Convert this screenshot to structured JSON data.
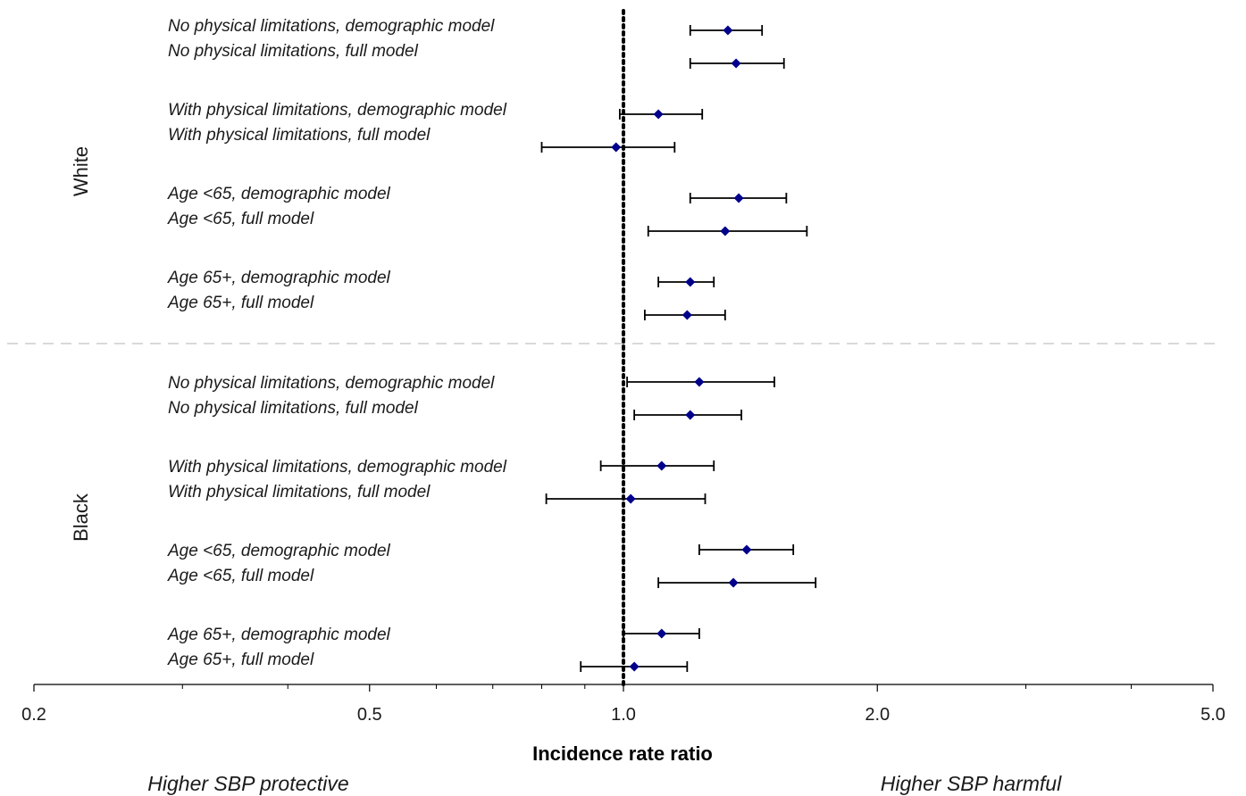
{
  "chart_data": {
    "type": "scatter",
    "subtype": "forest-plot",
    "title": "",
    "xlabel": "Incidence rate ratio",
    "ylabel": "",
    "x_scale": "log",
    "xlim": [
      0.2,
      5.0
    ],
    "x_ticks": [
      {
        "value": 0.2,
        "label": "0.2"
      },
      {
        "value": 0.5,
        "label": "0.5"
      },
      {
        "value": 1.0,
        "label": "1.0"
      },
      {
        "value": 2.0,
        "label": "2.0"
      },
      {
        "value": 5.0,
        "label": "5.0"
      }
    ],
    "x_minor_ticks": [
      0.3,
      0.4,
      0.6,
      0.7,
      0.8,
      0.9,
      3.0,
      4.0
    ],
    "reference_line": 1.0,
    "annotations": {
      "left": "Higher SBP protective",
      "right": "Higher SBP harmful"
    },
    "colors": {
      "marker": "#00008B",
      "whisker": "#000000",
      "reference_line": "#000000",
      "separator": "#d9d9d9"
    },
    "groups": [
      {
        "name": "White",
        "rows": [
          {
            "label": "No physical limitations, demographic model",
            "estimate": 1.33,
            "lower": 1.2,
            "upper": 1.46
          },
          {
            "label": "No physical limitations, full model",
            "estimate": 1.36,
            "lower": 1.2,
            "upper": 1.55
          },
          {
            "label": "With physical limitations, demographic model",
            "estimate": 1.1,
            "lower": 0.99,
            "upper": 1.24
          },
          {
            "label": "With physical limitations, full model",
            "estimate": 0.98,
            "lower": 0.8,
            "upper": 1.15
          },
          {
            "label": "Age <65, demographic model",
            "estimate": 1.37,
            "lower": 1.2,
            "upper": 1.56
          },
          {
            "label": "Age <65, full model",
            "estimate": 1.32,
            "lower": 1.07,
            "upper": 1.65
          },
          {
            "label": "Age 65+, demographic model",
            "estimate": 1.2,
            "lower": 1.1,
            "upper": 1.28
          },
          {
            "label": "Age 65+, full model",
            "estimate": 1.19,
            "lower": 1.06,
            "upper": 1.32
          }
        ]
      },
      {
        "name": "Black",
        "rows": [
          {
            "label": "No physical limitations, demographic model",
            "estimate": 1.23,
            "lower": 1.01,
            "upper": 1.51
          },
          {
            "label": "No physical limitations, full model",
            "estimate": 1.2,
            "lower": 1.03,
            "upper": 1.38
          },
          {
            "label": "With physical limitations, demographic model",
            "estimate": 1.11,
            "lower": 0.94,
            "upper": 1.28
          },
          {
            "label": "With physical limitations, full model",
            "estimate": 1.02,
            "lower": 0.81,
            "upper": 1.25
          },
          {
            "label": "Age <65, demographic model",
            "estimate": 1.4,
            "lower": 1.23,
            "upper": 1.59
          },
          {
            "label": "Age <65, full model",
            "estimate": 1.35,
            "lower": 1.1,
            "upper": 1.69
          },
          {
            "label": "Age 65+, demographic model",
            "estimate": 1.11,
            "lower": 1.0,
            "upper": 1.23
          },
          {
            "label": "Age 65+, full model",
            "estimate": 1.03,
            "lower": 0.89,
            "upper": 1.19
          }
        ]
      }
    ]
  }
}
